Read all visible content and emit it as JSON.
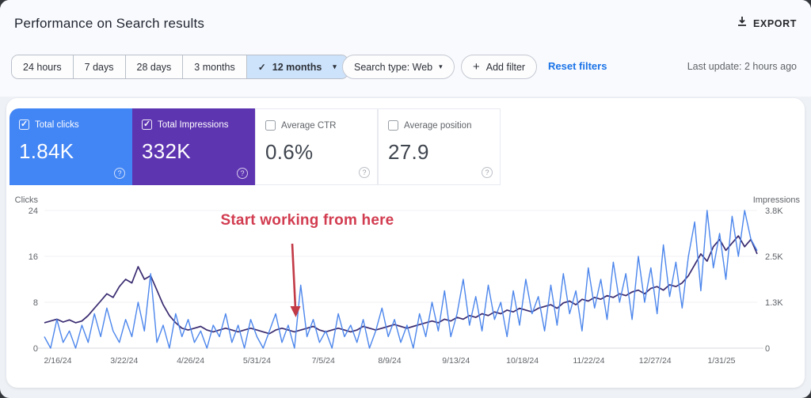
{
  "header": {
    "title": "Performance on Search results",
    "export_label": "EXPORT"
  },
  "filters": {
    "ranges": [
      {
        "label": "24 hours"
      },
      {
        "label": "7 days"
      },
      {
        "label": "28 days"
      },
      {
        "label": "3 months"
      },
      {
        "label": "12 months",
        "selected": true,
        "check": "✓",
        "caret": "▾"
      }
    ],
    "search_type_label": "Search type: Web",
    "search_type_caret": "▾",
    "add_filter_label": "Add filter",
    "add_filter_plus": "+",
    "reset_label": "Reset filters",
    "last_update": "Last update: 2 hours ago"
  },
  "cards": [
    {
      "label": "Total clicks",
      "value": "1.84K",
      "checked": true,
      "color": "#4285f4",
      "help": "?"
    },
    {
      "label": "Total Impressions",
      "value": "332K",
      "checked": true,
      "color": "#5e35b1",
      "help": "?"
    },
    {
      "label": "Average CTR",
      "value": "0.6%",
      "checked": false,
      "help": "?"
    },
    {
      "label": "Average position",
      "value": "27.9",
      "checked": false,
      "help": "?"
    }
  ],
  "annotation": {
    "text": "Start working from here",
    "color": "#d23c50",
    "arrow_color": "#c23a46"
  },
  "chart_data": {
    "type": "line",
    "title": "Performance on Search results - 12 months",
    "grid": "minimal",
    "legend_position": "none",
    "x_tick_labels": [
      "2/16/24",
      "3/22/24",
      "4/26/24",
      "5/31/24",
      "7/5/24",
      "8/9/24",
      "9/13/24",
      "10/18/24",
      "11/22/24",
      "12/27/24",
      "1/31/25"
    ],
    "left_axis": {
      "label": "Clicks",
      "ticks": [
        "0",
        "8",
        "16",
        "24"
      ],
      "tick_values": [
        0,
        8,
        16,
        24
      ],
      "max": 24
    },
    "right_axis": {
      "label": "Impressions",
      "ticks": [
        "0",
        "1.3K",
        "2.5K",
        "3.8K"
      ],
      "tick_values": [
        0,
        1.25,
        2.5,
        3.75
      ],
      "max": 3.8
    },
    "series": [
      {
        "name": "Total clicks",
        "axis": "left",
        "color": "#4c86ec",
        "width": 1.4,
        "values": [
          2,
          0,
          5,
          1,
          3,
          0,
          4,
          1,
          6,
          2,
          7,
          3,
          1,
          5,
          2,
          8,
          3,
          13,
          1,
          4,
          0,
          6,
          2,
          5,
          1,
          3,
          0,
          4,
          2,
          6,
          1,
          4,
          0,
          5,
          2,
          0,
          3,
          6,
          1,
          4,
          0,
          11,
          2,
          5,
          1,
          3,
          0,
          6,
          2,
          4,
          1,
          5,
          0,
          3,
          7,
          2,
          5,
          1,
          4,
          0,
          6,
          2,
          8,
          3,
          10,
          2,
          6,
          12,
          4,
          9,
          3,
          11,
          5,
          8,
          2,
          10,
          4,
          12,
          6,
          9,
          3,
          11,
          4,
          13,
          6,
          10,
          3,
          14,
          7,
          12,
          5,
          15,
          8,
          13,
          5,
          16,
          8,
          14,
          6,
          18,
          9,
          15,
          7,
          16,
          22,
          10,
          24,
          14,
          20,
          12,
          23,
          16,
          24,
          19,
          17
        ]
      },
      {
        "name": "Total Impressions",
        "axis": "right",
        "color": "#3a2b70",
        "width": 1.7,
        "unit": "K",
        "values": [
          0.7,
          0.75,
          0.8,
          0.72,
          0.78,
          0.7,
          0.75,
          0.9,
          1.1,
          1.3,
          1.5,
          1.4,
          1.7,
          1.9,
          1.8,
          2.25,
          1.9,
          2.0,
          1.6,
          1.2,
          0.9,
          0.7,
          0.55,
          0.5,
          0.55,
          0.6,
          0.5,
          0.45,
          0.5,
          0.55,
          0.5,
          0.45,
          0.5,
          0.55,
          0.5,
          0.45,
          0.4,
          0.5,
          0.55,
          0.5,
          0.45,
          0.5,
          0.55,
          0.6,
          0.5,
          0.45,
          0.5,
          0.55,
          0.5,
          0.45,
          0.5,
          0.6,
          0.55,
          0.5,
          0.55,
          0.6,
          0.65,
          0.6,
          0.55,
          0.6,
          0.65,
          0.7,
          0.75,
          0.7,
          0.8,
          0.75,
          0.85,
          0.8,
          0.9,
          0.85,
          0.95,
          0.9,
          1.0,
          0.95,
          1.05,
          1.0,
          1.1,
          1.05,
          1.0,
          1.1,
          1.15,
          1.2,
          1.1,
          1.25,
          1.3,
          1.2,
          1.35,
          1.3,
          1.4,
          1.35,
          1.45,
          1.4,
          1.5,
          1.45,
          1.55,
          1.6,
          1.5,
          1.65,
          1.7,
          1.6,
          1.75,
          1.7,
          1.8,
          2.0,
          2.3,
          2.6,
          2.4,
          2.8,
          3.0,
          2.7,
          2.9,
          3.1,
          2.8,
          3.0,
          2.6
        ]
      }
    ]
  }
}
